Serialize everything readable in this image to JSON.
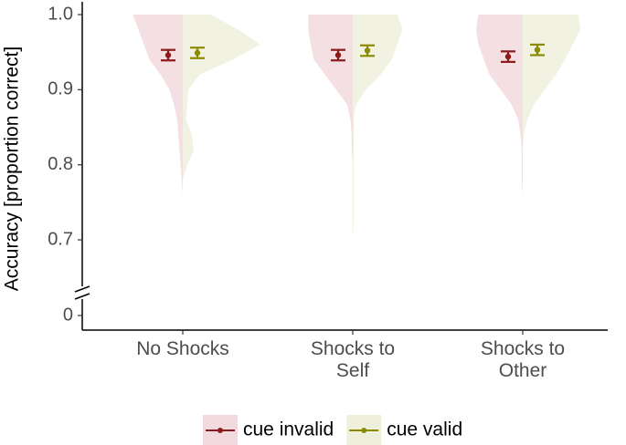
{
  "chart_data": {
    "type": "split-violin",
    "y_label": "Accuracy [proportion correct]",
    "categories": [
      "No Shocks",
      "Shocks to\nSelf",
      "Shocks to\nOther"
    ],
    "ylim": [
      0,
      1.0
    ],
    "yticks": [
      0,
      0.7,
      0.8,
      0.9,
      {
        "value": 1.0,
        "label": "1.0"
      }
    ],
    "axis_break": true,
    "legend": "bottom",
    "density_y": [
      1.0,
      0.98,
      0.96,
      0.94,
      0.92,
      0.9,
      0.88,
      0.86,
      0.84,
      0.82,
      0.8,
      0.78,
      0.76,
      0.74,
      0.72,
      0.7
    ],
    "series": [
      {
        "name": "cue invalid",
        "color": "#8b1a1a",
        "fill_color": "#f2d9dd",
        "values": [
          0.946,
          0.946,
          0.944
        ],
        "errors": [
          0.007,
          0.007,
          0.007
        ],
        "density": [
          [
            45,
            40,
            35,
            30,
            20,
            12,
            8,
            5,
            4,
            3,
            2,
            1,
            0,
            0,
            0,
            0
          ],
          [
            40,
            40,
            38,
            35,
            25,
            15,
            5,
            2,
            1,
            1,
            0,
            0,
            0,
            0,
            0,
            0
          ],
          [
            40,
            42,
            40,
            35,
            30,
            20,
            10,
            4,
            2,
            1,
            1,
            1,
            0,
            0,
            0,
            0
          ]
        ]
      },
      {
        "name": "cue valid",
        "color": "#8b8b00",
        "fill_color": "#eef0dc",
        "values": [
          0.949,
          0.952,
          0.953
        ],
        "errors": [
          0.007,
          0.007,
          0.007
        ],
        "density": [
          [
            25,
            50,
            70,
            45,
            15,
            5,
            4,
            3,
            8,
            10,
            4,
            0,
            0,
            0,
            0,
            0
          ],
          [
            40,
            45,
            40,
            35,
            25,
            12,
            3,
            1,
            1,
            1,
            1,
            1,
            1,
            1,
            1,
            0
          ],
          [
            50,
            52,
            45,
            38,
            30,
            20,
            10,
            4,
            1,
            0,
            0,
            0,
            0,
            0,
            0,
            0
          ]
        ]
      }
    ]
  }
}
